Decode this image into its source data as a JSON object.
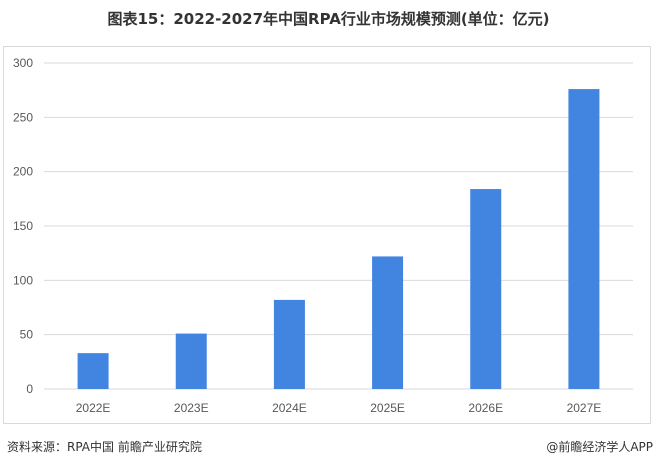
{
  "title": "图表15：2022-2027年中国RPA行业市场规模预测(单位：亿元)",
  "source": "资料来源：RPA中国 前瞻产业研究院",
  "credit": "@前瞻经济学人APP",
  "watermark": "前瞻产业研究院",
  "chart_data": {
    "type": "bar",
    "categories": [
      "2022E",
      "2023E",
      "2024E",
      "2025E",
      "2026E",
      "2027E"
    ],
    "values": [
      33,
      51,
      82,
      122,
      184,
      276
    ],
    "ylim": [
      0,
      300
    ],
    "yticks": [
      0,
      50,
      100,
      150,
      200,
      250,
      300
    ],
    "grid": true,
    "bar_color": "#4285e0"
  }
}
